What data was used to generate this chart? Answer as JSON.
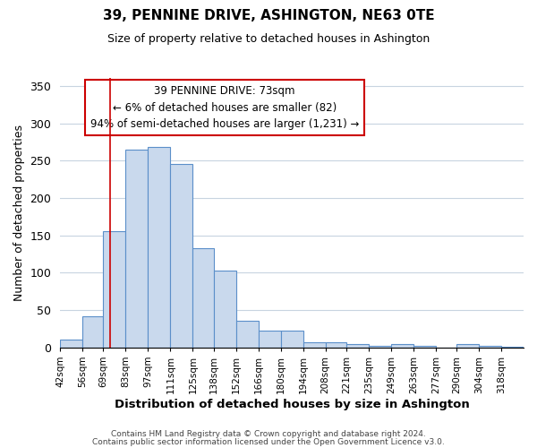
{
  "title": "39, PENNINE DRIVE, ASHINGTON, NE63 0TE",
  "subtitle": "Size of property relative to detached houses in Ashington",
  "xlabel": "Distribution of detached houses by size in Ashington",
  "ylabel": "Number of detached properties",
  "bin_labels": [
    "42sqm",
    "56sqm",
    "69sqm",
    "83sqm",
    "97sqm",
    "111sqm",
    "125sqm",
    "138sqm",
    "152sqm",
    "166sqm",
    "180sqm",
    "194sqm",
    "208sqm",
    "221sqm",
    "235sqm",
    "249sqm",
    "263sqm",
    "277sqm",
    "290sqm",
    "304sqm",
    "318sqm"
  ],
  "bar_heights": [
    10,
    42,
    155,
    265,
    268,
    246,
    133,
    103,
    36,
    22,
    22,
    7,
    7,
    5,
    2,
    5,
    2,
    0,
    5,
    2,
    1
  ],
  "bar_color": "#c9d9ed",
  "bar_edge_color": "#5b8fc9",
  "ylim": [
    0,
    360
  ],
  "yticks": [
    0,
    50,
    100,
    150,
    200,
    250,
    300,
    350
  ],
  "property_line_x": 73,
  "bin_edges": [
    42,
    56,
    69,
    83,
    97,
    111,
    125,
    138,
    152,
    166,
    180,
    194,
    208,
    221,
    235,
    249,
    263,
    277,
    290,
    304,
    318,
    332
  ],
  "annotation_text": "39 PENNINE DRIVE: 73sqm\n← 6% of detached houses are smaller (82)\n94% of semi-detached houses are larger (1,231) →",
  "annotation_box_color": "#ffffff",
  "annotation_box_edge": "#cc0000",
  "line_color": "#cc0000",
  "footer1": "Contains HM Land Registry data © Crown copyright and database right 2024.",
  "footer2": "Contains public sector information licensed under the Open Government Licence v3.0.",
  "background_color": "#ffffff",
  "grid_color": "#c8d4e0",
  "title_fontsize": 11,
  "subtitle_fontsize": 9
}
